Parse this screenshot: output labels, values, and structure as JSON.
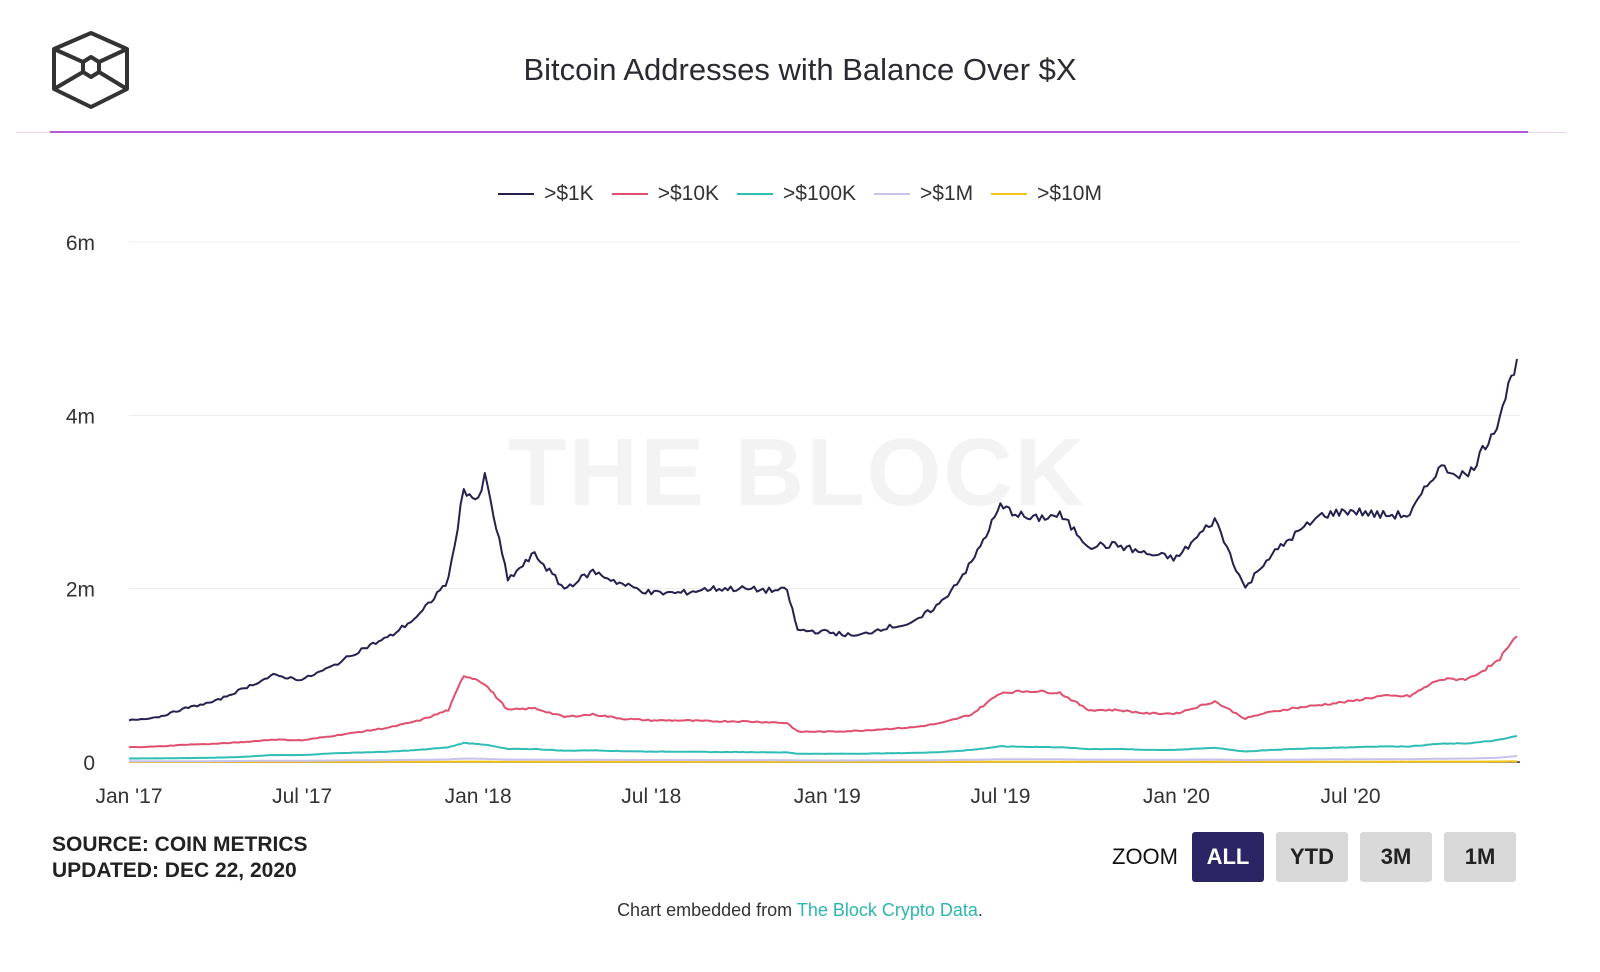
{
  "header": {
    "title": "Bitcoin Addresses with Balance Over $X",
    "logo_text": "The Block"
  },
  "watermark": "THE BLOCK",
  "source": {
    "line1": "SOURCE: COIN METRICS",
    "line2": "UPDATED: DEC 22, 2020"
  },
  "zoom": {
    "label": "ZOOM",
    "buttons": [
      "ALL",
      "YTD",
      "3M",
      "1M"
    ],
    "active": "ALL"
  },
  "footer": {
    "prefix": "Chart embedded from ",
    "link": "The Block Crypto Data",
    "suffix": "."
  },
  "chart_data": {
    "type": "line",
    "title": "Bitcoin Addresses with Balance Over $X",
    "xlabel": "",
    "ylabel": "",
    "ylim": [
      0,
      6000000
    ],
    "yticks": [
      0,
      2000000,
      4000000,
      6000000
    ],
    "ytick_labels": [
      "0",
      "2m",
      "4m",
      "6m"
    ],
    "xticks": [
      "2017-01-01",
      "2017-07-01",
      "2018-01-01",
      "2018-07-01",
      "2019-01-01",
      "2019-07-01",
      "2020-01-01",
      "2020-07-01"
    ],
    "xtick_labels": [
      "Jan '17",
      "Jul '17",
      "Jan '18",
      "Jul '18",
      "Jan '19",
      "Jul '19",
      "Jan '20",
      "Jul '20"
    ],
    "xlim": [
      "2017-01-01",
      "2020-12-22"
    ],
    "grid": true,
    "legend_position": "top-center",
    "x": [
      "2017-01-01",
      "2017-02-01",
      "2017-03-01",
      "2017-04-01",
      "2017-05-01",
      "2017-06-01",
      "2017-07-01",
      "2017-08-01",
      "2017-09-01",
      "2017-10-01",
      "2017-11-01",
      "2017-12-01",
      "2017-12-17",
      "2018-01-01",
      "2018-01-08",
      "2018-02-01",
      "2018-03-01",
      "2018-04-01",
      "2018-05-01",
      "2018-06-01",
      "2018-07-01",
      "2018-08-01",
      "2018-09-01",
      "2018-10-01",
      "2018-11-01",
      "2018-11-20",
      "2018-12-01",
      "2019-01-01",
      "2019-02-01",
      "2019-03-01",
      "2019-04-01",
      "2019-05-01",
      "2019-06-01",
      "2019-07-01",
      "2019-08-01",
      "2019-09-01",
      "2019-10-01",
      "2019-11-01",
      "2019-12-01",
      "2020-01-01",
      "2020-02-10",
      "2020-03-13",
      "2020-04-01",
      "2020-05-01",
      "2020-06-01",
      "2020-07-01",
      "2020-08-01",
      "2020-09-01",
      "2020-10-01",
      "2020-11-01",
      "2020-12-01",
      "2020-12-22"
    ],
    "series": [
      {
        "name": ">$1K",
        "color": "#25214f",
        "values": [
          480000,
          520000,
          620000,
          700000,
          850000,
          1000000,
          950000,
          1100000,
          1300000,
          1450000,
          1700000,
          2100000,
          3150000,
          3000000,
          3300000,
          2100000,
          2400000,
          2000000,
          2200000,
          2050000,
          1950000,
          1950000,
          2000000,
          2000000,
          1980000,
          1980000,
          1520000,
          1500000,
          1450000,
          1550000,
          1600000,
          1850000,
          2300000,
          2950000,
          2800000,
          2850000,
          2500000,
          2500000,
          2400000,
          2350000,
          2800000,
          2000000,
          2300000,
          2600000,
          2850000,
          2900000,
          2850000,
          2850000,
          3400000,
          3300000,
          3900000,
          4650000
        ]
      },
      {
        "name": ">$10K",
        "color": "#e0506e",
        "values": [
          170000,
          180000,
          200000,
          210000,
          230000,
          260000,
          250000,
          300000,
          350000,
          400000,
          480000,
          600000,
          1000000,
          950000,
          900000,
          600000,
          620000,
          520000,
          550000,
          500000,
          480000,
          480000,
          470000,
          470000,
          460000,
          450000,
          350000,
          350000,
          360000,
          380000,
          400000,
          450000,
          550000,
          800000,
          820000,
          800000,
          600000,
          600000,
          560000,
          560000,
          700000,
          500000,
          560000,
          620000,
          660000,
          700000,
          760000,
          760000,
          950000,
          960000,
          1150000,
          1450000
        ]
      },
      {
        "name": ">$100K",
        "color": "#2fbdb5",
        "values": [
          40000,
          42000,
          45000,
          50000,
          60000,
          80000,
          80000,
          100000,
          110000,
          120000,
          140000,
          170000,
          220000,
          210000,
          200000,
          150000,
          150000,
          130000,
          135000,
          125000,
          120000,
          120000,
          115000,
          115000,
          112000,
          110000,
          95000,
          95000,
          95000,
          100000,
          105000,
          115000,
          140000,
          180000,
          175000,
          170000,
          150000,
          150000,
          140000,
          140000,
          165000,
          120000,
          135000,
          150000,
          160000,
          170000,
          180000,
          180000,
          210000,
          215000,
          250000,
          300000
        ]
      },
      {
        "name": ">$1M",
        "color": "#c8c2ec",
        "values": [
          8000,
          8000,
          9000,
          10000,
          12000,
          15000,
          15000,
          18000,
          20000,
          22000,
          25000,
          30000,
          40000,
          38000,
          36000,
          28000,
          28000,
          25000,
          25000,
          24000,
          23000,
          23000,
          22000,
          22000,
          22000,
          21000,
          18000,
          18000,
          18000,
          19000,
          20000,
          22000,
          26000,
          32000,
          31000,
          31000,
          28000,
          28000,
          26000,
          26000,
          30000,
          22000,
          25000,
          28000,
          30000,
          31000,
          33000,
          33000,
          38000,
          40000,
          48000,
          70000
        ]
      },
      {
        "name": ">$10M",
        "color": "#f2c418",
        "values": [
          1500,
          1500,
          1600,
          1700,
          1900,
          2200,
          2200,
          2500,
          2800,
          3000,
          3300,
          3800,
          4600,
          4400,
          4300,
          3500,
          3500,
          3200,
          3200,
          3100,
          3000,
          3000,
          2900,
          2900,
          2900,
          2800,
          2500,
          2500,
          2500,
          2600,
          2700,
          2900,
          3300,
          3900,
          3800,
          3800,
          3500,
          3500,
          3300,
          3300,
          3700,
          2900,
          3200,
          3500,
          3700,
          3800,
          4000,
          4000,
          4600,
          4800,
          5500,
          7000
        ]
      }
    ]
  }
}
